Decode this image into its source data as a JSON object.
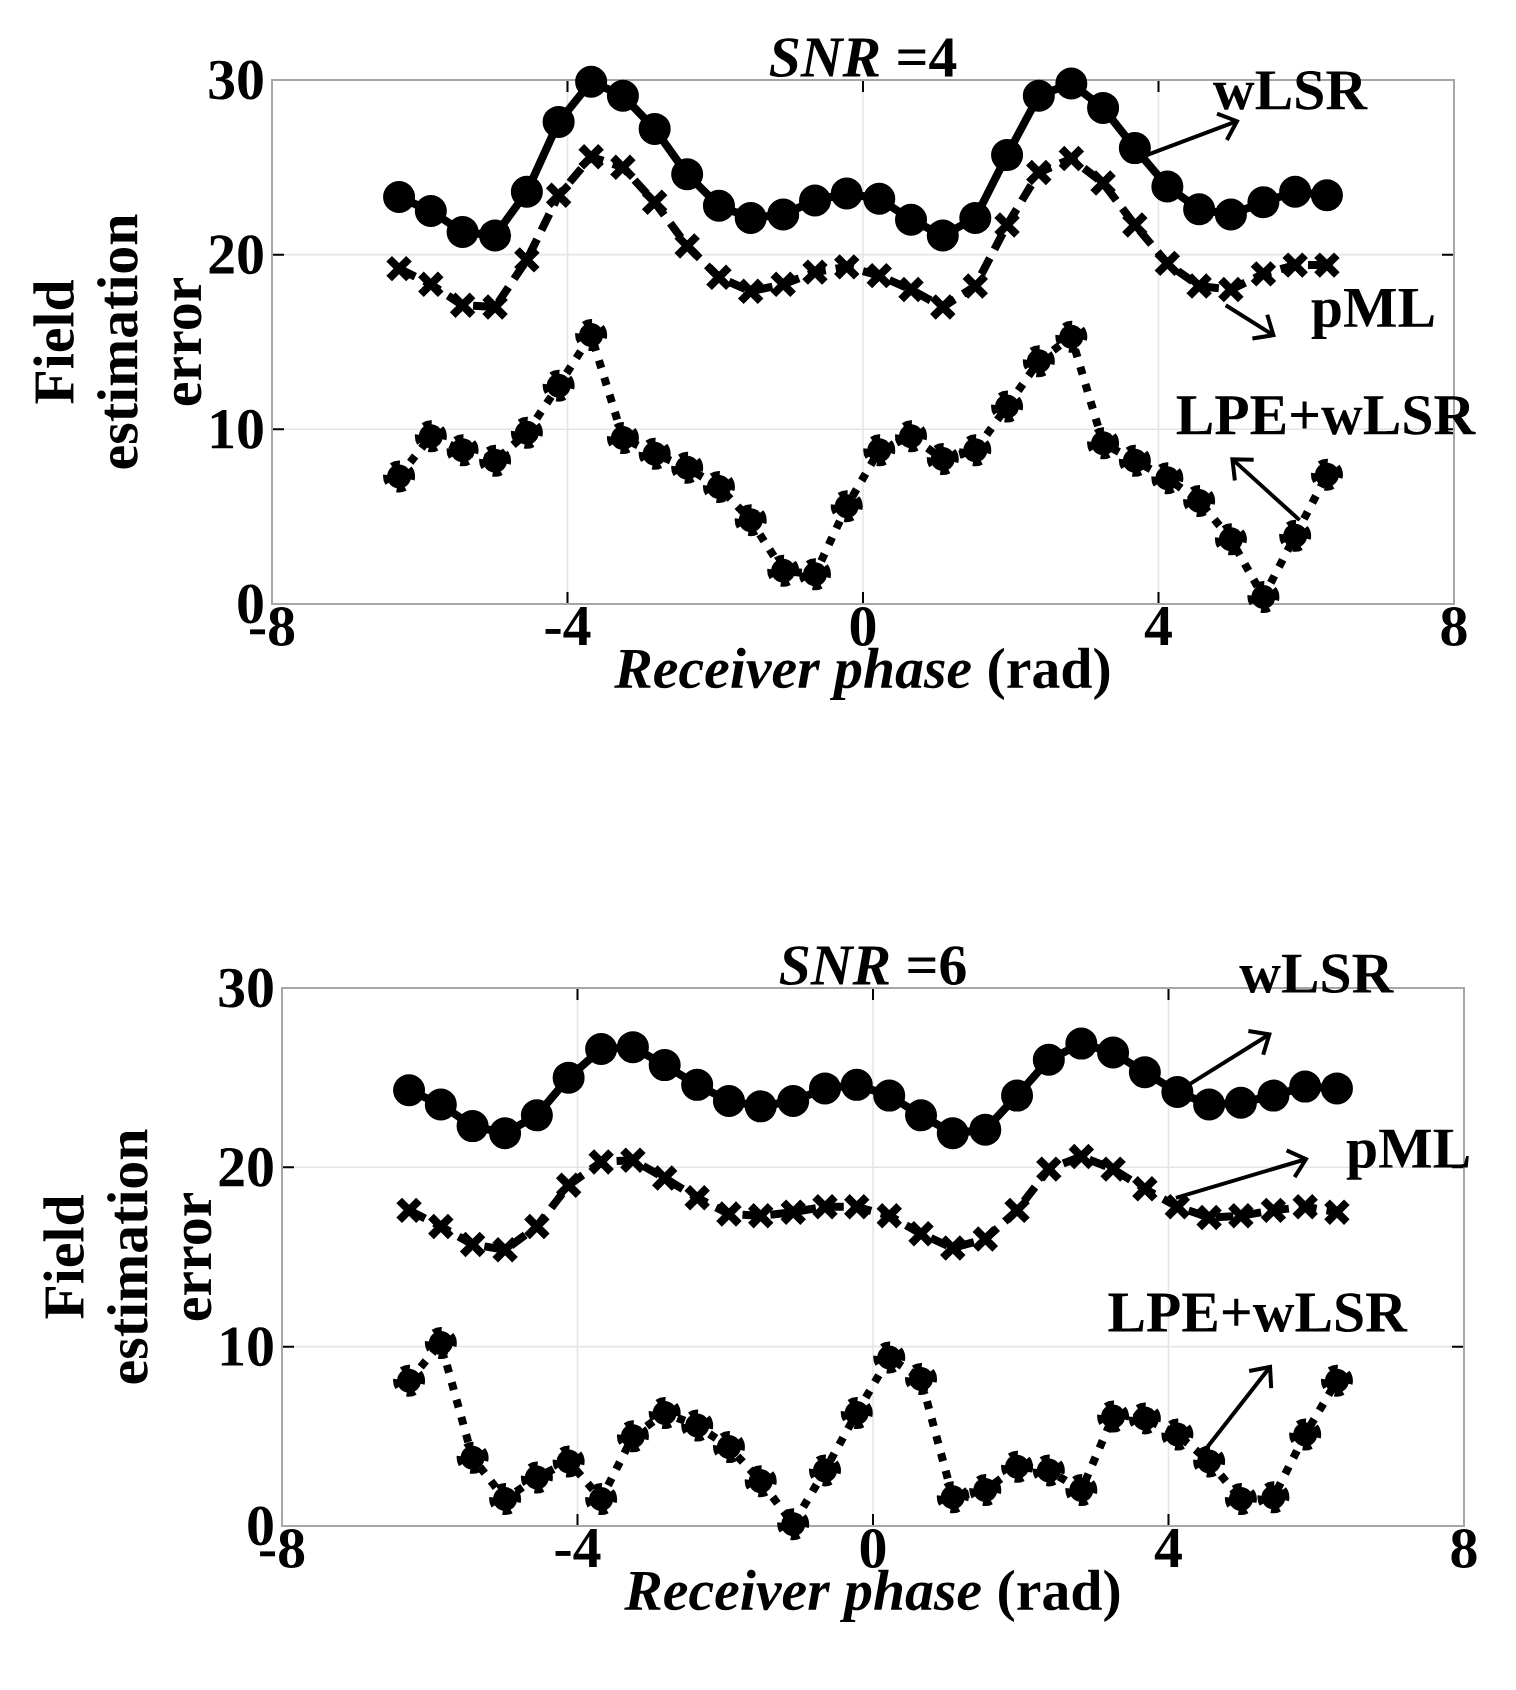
{
  "chart_data": [
    {
      "type": "line",
      "title": "*SNR* =4",
      "xlabel": "*Receiver phase* (rad)",
      "ylabel": "Field estimation error",
      "xlim": [
        -8,
        8
      ],
      "ylim": [
        0,
        30
      ],
      "xticks": [
        -8,
        -4,
        0,
        4,
        8
      ],
      "yticks": [
        0,
        10,
        20,
        30
      ],
      "grid": true,
      "x": [
        -6.28,
        -5.85,
        -5.42,
        -4.98,
        -4.55,
        -4.12,
        -3.68,
        -3.25,
        -2.82,
        -2.38,
        -1.95,
        -1.52,
        -1.08,
        -0.65,
        -0.22,
        0.22,
        0.65,
        1.08,
        1.52,
        1.95,
        2.38,
        2.82,
        3.25,
        3.68,
        4.12,
        4.55,
        4.98,
        5.42,
        5.85,
        6.28
      ],
      "series": [
        {
          "color": "#000000",
          "marker": "circle",
          "line_style": "solid",
          "values": [
            23.3,
            22.5,
            21.3,
            21.1,
            23.6,
            27.6,
            29.9,
            29.1,
            27.2,
            24.6,
            22.8,
            22.1,
            22.3,
            23.1,
            23.5,
            23.2,
            22.0,
            21.1,
            22.1,
            25.7,
            29.1,
            29.8,
            28.4,
            26.1,
            23.9,
            22.6,
            22.3,
            23.0,
            23.6,
            23.4
          ]
        },
        {
          "color": "#000000",
          "marker": "cross",
          "line_style": "dashed",
          "values": [
            19.2,
            18.3,
            17.1,
            17.0,
            19.7,
            23.4,
            25.6,
            25.0,
            23.0,
            20.5,
            18.7,
            17.9,
            18.3,
            19.0,
            19.3,
            18.8,
            18.0,
            17.0,
            18.2,
            21.7,
            24.7,
            25.5,
            24.1,
            21.7,
            19.5,
            18.2,
            18.0,
            18.9,
            19.4,
            19.4
          ]
        },
        {
          "color": "#000000",
          "marker": "circle",
          "line_style": "dotted",
          "values": [
            7.3,
            9.6,
            8.8,
            8.2,
            9.8,
            12.5,
            15.4,
            9.5,
            8.6,
            7.8,
            6.7,
            4.8,
            1.9,
            1.7,
            5.6,
            8.8,
            9.6,
            8.3,
            8.8,
            11.3,
            13.9,
            15.3,
            9.2,
            8.2,
            7.2,
            5.9,
            3.7,
            0.4,
            3.9,
            7.4
          ]
        }
      ],
      "annotations": [
        {
          "text": "wLSR",
          "x": 3.84,
          "y": 25.7
        },
        {
          "text": "pML",
          "x": 4.91,
          "y": 17.1
        },
        {
          "text": "LPE+wLSR",
          "x": 5.91,
          "y": 4.8
        }
      ]
    },
    {
      "type": "line",
      "title": "*SNR* =6",
      "xlabel": "*Receiver phase* (rad)",
      "ylabel": "Field estimation error",
      "xlim": [
        -8,
        8
      ],
      "ylim": [
        0,
        30
      ],
      "xticks": [
        -8,
        -4,
        0,
        4,
        8
      ],
      "yticks": [
        0,
        10,
        20,
        30
      ],
      "grid": true,
      "x": [
        -6.28,
        -5.85,
        -5.42,
        -4.98,
        -4.55,
        -4.12,
        -3.68,
        -3.25,
        -2.82,
        -2.38,
        -1.95,
        -1.52,
        -1.08,
        -0.65,
        -0.22,
        0.22,
        0.65,
        1.08,
        1.52,
        1.95,
        2.38,
        2.82,
        3.25,
        3.68,
        4.12,
        4.55,
        4.98,
        5.42,
        5.85,
        6.28
      ],
      "series": [
        {
          "color": "#000000",
          "marker": "circle",
          "line_style": "solid",
          "values": [
            24.3,
            23.5,
            22.3,
            21.9,
            22.9,
            25.0,
            26.6,
            26.7,
            25.7,
            24.6,
            23.7,
            23.4,
            23.7,
            24.4,
            24.6,
            24.0,
            22.9,
            21.9,
            22.1,
            24.0,
            26.0,
            26.9,
            26.4,
            25.3,
            24.2,
            23.5,
            23.6,
            24.0,
            24.5,
            24.4
          ]
        },
        {
          "color": "#000000",
          "marker": "cross",
          "line_style": "dashed",
          "values": [
            17.6,
            16.7,
            15.7,
            15.4,
            16.7,
            19.0,
            20.3,
            20.4,
            19.4,
            18.3,
            17.4,
            17.3,
            17.5,
            17.8,
            17.8,
            17.3,
            16.3,
            15.5,
            16.0,
            17.6,
            19.9,
            20.6,
            19.9,
            18.8,
            17.8,
            17.2,
            17.3,
            17.6,
            17.8,
            17.5
          ]
        },
        {
          "color": "#000000",
          "marker": "circle",
          "line_style": "dotted",
          "values": [
            8.1,
            10.2,
            3.8,
            1.5,
            2.7,
            3.6,
            1.5,
            5.0,
            6.3,
            5.6,
            4.4,
            2.5,
            0.1,
            3.1,
            6.3,
            9.4,
            8.2,
            1.6,
            2.0,
            3.3,
            3.1,
            2.0,
            6.1,
            6.0,
            5.1,
            3.6,
            1.5,
            1.6,
            5.1,
            8.1
          ]
        }
      ],
      "annotations": [
        {
          "text": "wLSR",
          "x": 4.27,
          "y": 24.6
        },
        {
          "text": "pML",
          "x": 4.1,
          "y": 18.3
        },
        {
          "text": "LPE+wLSR",
          "x": 4.45,
          "y": 4.0
        }
      ]
    }
  ]
}
